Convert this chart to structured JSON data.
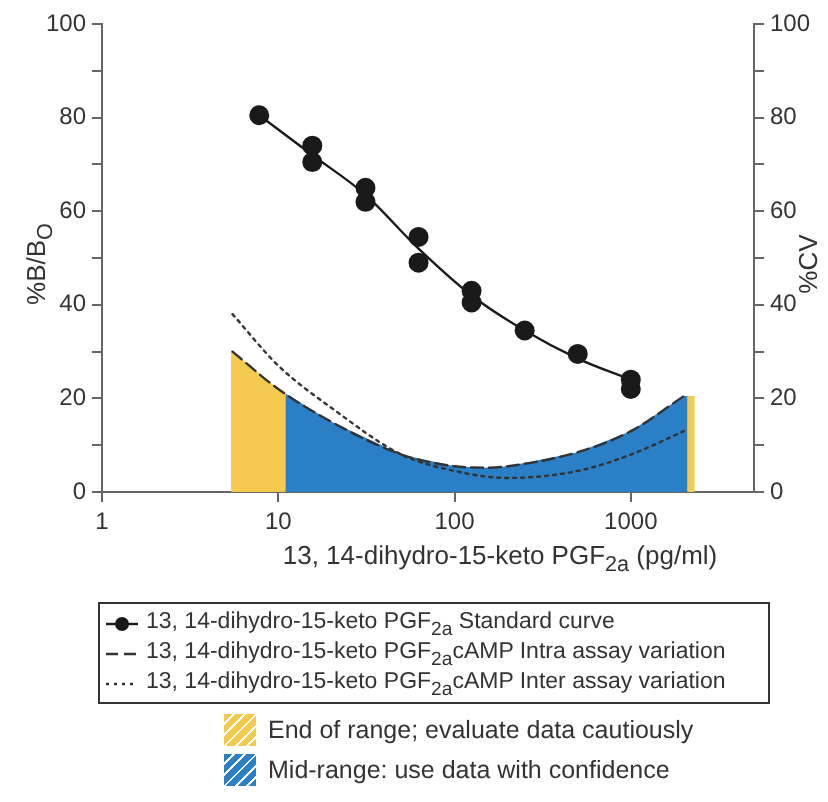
{
  "chart_data": {
    "type": "scatter",
    "xlabel": "13, 14-dihydro-15-keto PGF$_{2a}$ (pg/ml)",
    "ylabel": "%B/B$_{O}$",
    "y2label": "%CV",
    "log": "x",
    "xlim": [
      1,
      5000
    ],
    "xticks": [
      1,
      10,
      100,
      1000
    ],
    "ylim": [
      0,
      100
    ],
    "yticks": [
      0,
      {
        "value": 10,
        "label": null
      },
      20,
      {
        "value": 30,
        "label": null
      },
      40,
      {
        "value": 50,
        "label": null
      },
      60,
      {
        "value": 70,
        "label": null
      },
      80,
      {
        "value": 90,
        "label": null
      },
      100
    ],
    "y2lim": [
      0,
      100
    ],
    "y2ticks": [
      0,
      {
        "value": 10,
        "label": null
      },
      20,
      {
        "value": 30,
        "label": null
      },
      40,
      {
        "value": 50,
        "label": null
      },
      60,
      {
        "value": 70,
        "label": null
      },
      80,
      {
        "value": 90,
        "label": null
      },
      100
    ],
    "grid": false,
    "legend": "bottom",
    "series": [
      {
        "name": "13, 14-dihydro-15-keto PGF$_{2a}$ Standard curve",
        "type": "scatter",
        "marker": "circle",
        "color": "#1a1a1a",
        "x": [
          7.8,
          15.6,
          15.6,
          31.25,
          31.25,
          62.5,
          62.5,
          125,
          125,
          250,
          500,
          1000,
          1000
        ],
        "values": [
          80.5,
          74,
          70.5,
          65,
          62,
          54.5,
          49,
          43,
          40.5,
          34.5,
          29.5,
          24,
          22
        ]
      },
      {
        "type": "line",
        "marker": "none",
        "line_style": "solid",
        "color": "#1a1a1a",
        "x": [
          7.8,
          15.6,
          31.25,
          62.5,
          125,
          250,
          500,
          1000
        ],
        "values": [
          80.5,
          72,
          63.5,
          52,
          42,
          34.5,
          28.5,
          24
        ]
      },
      {
        "name": "13, 14-dihydro-15-keto PGF$_{2a}$cAMP Intra assay variation",
        "type": "line",
        "axis": "y2",
        "marker": "none",
        "line_style": "dashed",
        "color": "#333333",
        "x": [
          5.5,
          10,
          20,
          50,
          100,
          150,
          200,
          500,
          1000,
          2000
        ],
        "values": [
          30,
          22,
          15,
          8,
          5.5,
          5.2,
          5.5,
          8.5,
          13,
          20.5
        ]
      },
      {
        "name": "13, 14-dihydro-15-keto PGF$_{2a}$cAMP Inter assay variation",
        "type": "line",
        "axis": "y2",
        "marker": "none",
        "line_style": "dotted",
        "color": "#333333",
        "x": [
          5.5,
          10,
          20,
          50,
          100,
          200,
          500,
          1000,
          2000
        ],
        "values": [
          38,
          27,
          18,
          8,
          4.5,
          3,
          4.5,
          8,
          13
        ]
      }
    ],
    "bands": [
      {
        "axis": "x",
        "from": 5.4,
        "to": 11,
        "label": "End of range; evaluate data cautiously",
        "color": "#f3c94e"
      },
      {
        "axis": "x",
        "from": 11,
        "to": 2100,
        "label": "Mid-range: use data with confidence",
        "color": "#2a7fc6"
      },
      {
        "axis": "x",
        "from": 2100,
        "to": 2300,
        "color": "#f3c94e"
      }
    ]
  }
}
